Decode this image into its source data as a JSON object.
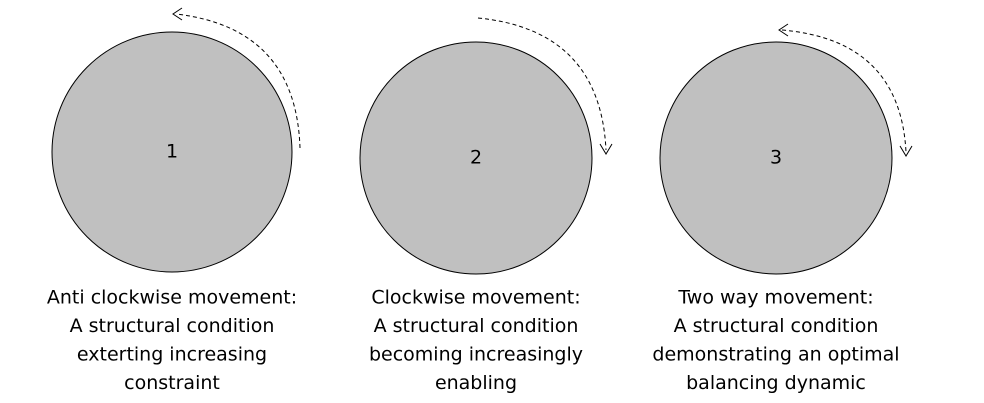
{
  "items": [
    {
      "number": "1",
      "caption": [
        "Anti clockwise movement:",
        "A structural condition",
        "exterting increasing",
        "constraint"
      ]
    },
    {
      "number": "2",
      "caption": [
        "Clockwise movement:",
        "A structural condition",
        "becoming increasingly",
        "enabling"
      ]
    },
    {
      "number": "3",
      "caption": [
        "Two way movement:",
        "A structural condition",
        "demonstrating an optimal",
        "balancing dynamic"
      ]
    }
  ]
}
